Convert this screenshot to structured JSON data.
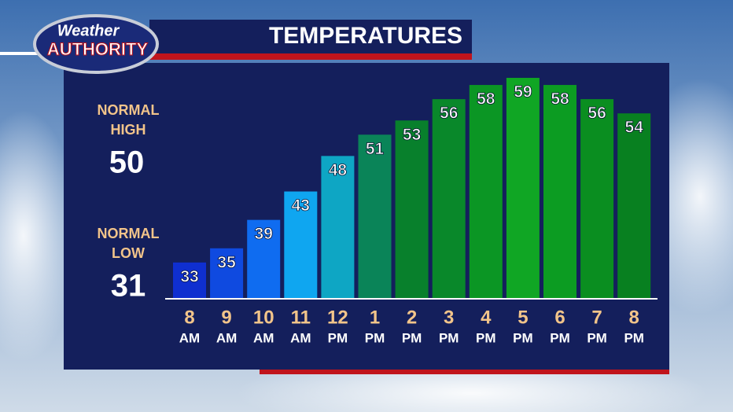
{
  "logo": {
    "line1": "Weather",
    "line2": "AUTHORITY"
  },
  "normals": {
    "high_label": [
      "NORMAL",
      "HIGH"
    ],
    "high": 50,
    "low_label": [
      "NORMAL",
      "LOW"
    ],
    "low": 31
  },
  "chart_data": {
    "type": "bar",
    "title": "TEMPERATURES",
    "categories": [
      [
        "8",
        "AM"
      ],
      [
        "9",
        "AM"
      ],
      [
        "10",
        "AM"
      ],
      [
        "11",
        "AM"
      ],
      [
        "12",
        "PM"
      ],
      [
        "1",
        "PM"
      ],
      [
        "2",
        "PM"
      ],
      [
        "3",
        "PM"
      ],
      [
        "4",
        "PM"
      ],
      [
        "5",
        "PM"
      ],
      [
        "6",
        "PM"
      ],
      [
        "7",
        "PM"
      ],
      [
        "8",
        "PM"
      ]
    ],
    "values": [
      33,
      35,
      39,
      43,
      48,
      51,
      53,
      56,
      58,
      59,
      58,
      56,
      54
    ],
    "colors": [
      "#0f2fd0",
      "#0f4ae0",
      "#0f6cf0",
      "#0fa6f0",
      "#0ea6c4",
      "#0a8458",
      "#08802c",
      "#09882a",
      "#0b9624",
      "#10a624",
      "#0c9c22",
      "#0a8e20",
      "#088020"
    ],
    "ylim": [
      28,
      60
    ]
  }
}
